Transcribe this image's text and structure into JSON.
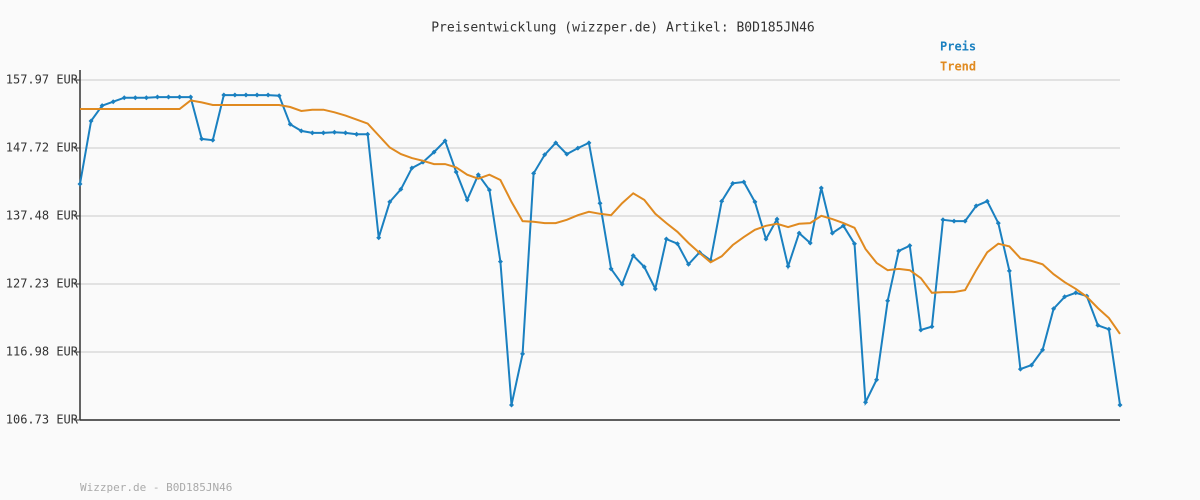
{
  "chart_data": {
    "type": "line",
    "title": "Preisentwicklung (wizzper.de) Artikel: B0D185JN46",
    "footer": "Wizzper.de - B0D185JN46",
    "categories": [
      null,
      null,
      null,
      null,
      null,
      null,
      null,
      null,
      null,
      null,
      null,
      null,
      null,
      null,
      null,
      null,
      null,
      null,
      null,
      null,
      null,
      null,
      null,
      null,
      null,
      null,
      null,
      null,
      null,
      null,
      null,
      null,
      null,
      null,
      null,
      null,
      null,
      null,
      null,
      null,
      null,
      null,
      null,
      null,
      null,
      null,
      null,
      null,
      null,
      null,
      null,
      null,
      null,
      null,
      null,
      null,
      null,
      null,
      null,
      null,
      null,
      null,
      null,
      null,
      null,
      null,
      null,
      null,
      null,
      null,
      null,
      null,
      null,
      null,
      null,
      null,
      null,
      null,
      null,
      null,
      null,
      null,
      null,
      null,
      null,
      null,
      null,
      null,
      null,
      null,
      null,
      null,
      null,
      null,
      null
    ],
    "series": [
      {
        "name": "Preis",
        "color": "#1a80c0",
        "markers": true,
        "values": [
          142.3,
          151.8,
          154.1,
          154.7,
          155.3,
          155.3,
          155.3,
          155.4,
          155.4,
          155.4,
          155.4,
          149.1,
          148.9,
          155.7,
          155.7,
          155.7,
          155.7,
          155.7,
          155.6,
          151.3,
          150.3,
          150.0,
          150.0,
          150.1,
          150.0,
          149.8,
          149.8,
          134.2,
          139.6,
          141.5,
          144.7,
          145.6,
          147.1,
          148.8,
          144.1,
          139.9,
          143.7,
          141.4,
          130.6,
          109.0,
          116.7,
          143.9,
          146.7,
          148.5,
          146.8,
          147.7,
          148.5,
          139.4,
          129.5,
          127.2,
          131.5,
          129.8,
          126.5,
          134.0,
          133.3,
          130.2,
          132.0,
          130.8,
          139.7,
          142.4,
          142.6,
          139.6,
          134.0,
          137.0,
          129.9,
          134.9,
          133.4,
          141.7,
          134.9,
          136.0,
          133.3,
          109.4,
          112.8,
          124.7,
          132.2,
          133.0,
          120.3,
          120.8,
          136.9,
          136.7,
          136.7,
          139.0,
          139.7,
          136.4,
          129.2,
          114.4,
          115.0,
          117.3,
          123.5,
          125.3,
          125.9,
          125.4,
          121.0,
          120.4,
          109.0
        ]
      },
      {
        "name": "Trend",
        "color": "#e08a20",
        "markers": false,
        "values": [
          153.6,
          153.6,
          153.6,
          153.6,
          153.6,
          153.6,
          153.6,
          153.6,
          153.6,
          153.6,
          154.9,
          154.6,
          154.2,
          154.2,
          154.2,
          154.2,
          154.2,
          154.2,
          154.2,
          153.9,
          153.3,
          153.5,
          153.5,
          153.1,
          152.6,
          152.0,
          151.4,
          149.6,
          147.8,
          146.8,
          146.2,
          145.8,
          145.3,
          145.3,
          144.8,
          143.7,
          143.1,
          143.7,
          142.9,
          139.6,
          136.7,
          136.6,
          136.4,
          136.4,
          136.9,
          137.6,
          138.1,
          137.8,
          137.6,
          139.4,
          140.9,
          139.9,
          137.8,
          136.4,
          135.1,
          133.4,
          131.9,
          130.5,
          131.4,
          133.1,
          134.3,
          135.4,
          136.0,
          136.3,
          135.8,
          136.3,
          136.4,
          137.5,
          137.0,
          136.4,
          135.7,
          132.5,
          130.4,
          129.3,
          129.5,
          129.3,
          128.1,
          125.9,
          126.0,
          126.0,
          126.3,
          129.3,
          132.0,
          133.3,
          132.9,
          131.1,
          130.7,
          130.2,
          128.7,
          127.5,
          126.5,
          125.3,
          123.6,
          122.1,
          119.7
        ]
      }
    ],
    "ylim": [
      106.73,
      157.97
    ],
    "yticks": [
      {
        "value": 106.73,
        "label": "106.73 EUR"
      },
      {
        "value": 116.98,
        "label": "116.98 EUR"
      },
      {
        "value": 127.23,
        "label": "127.23 EUR"
      },
      {
        "value": 137.48,
        "label": "137.48 EUR"
      },
      {
        "value": 147.72,
        "label": "147.72 EUR"
      },
      {
        "value": 157.97,
        "label": "157.97 EUR"
      }
    ],
    "grid": true
  }
}
